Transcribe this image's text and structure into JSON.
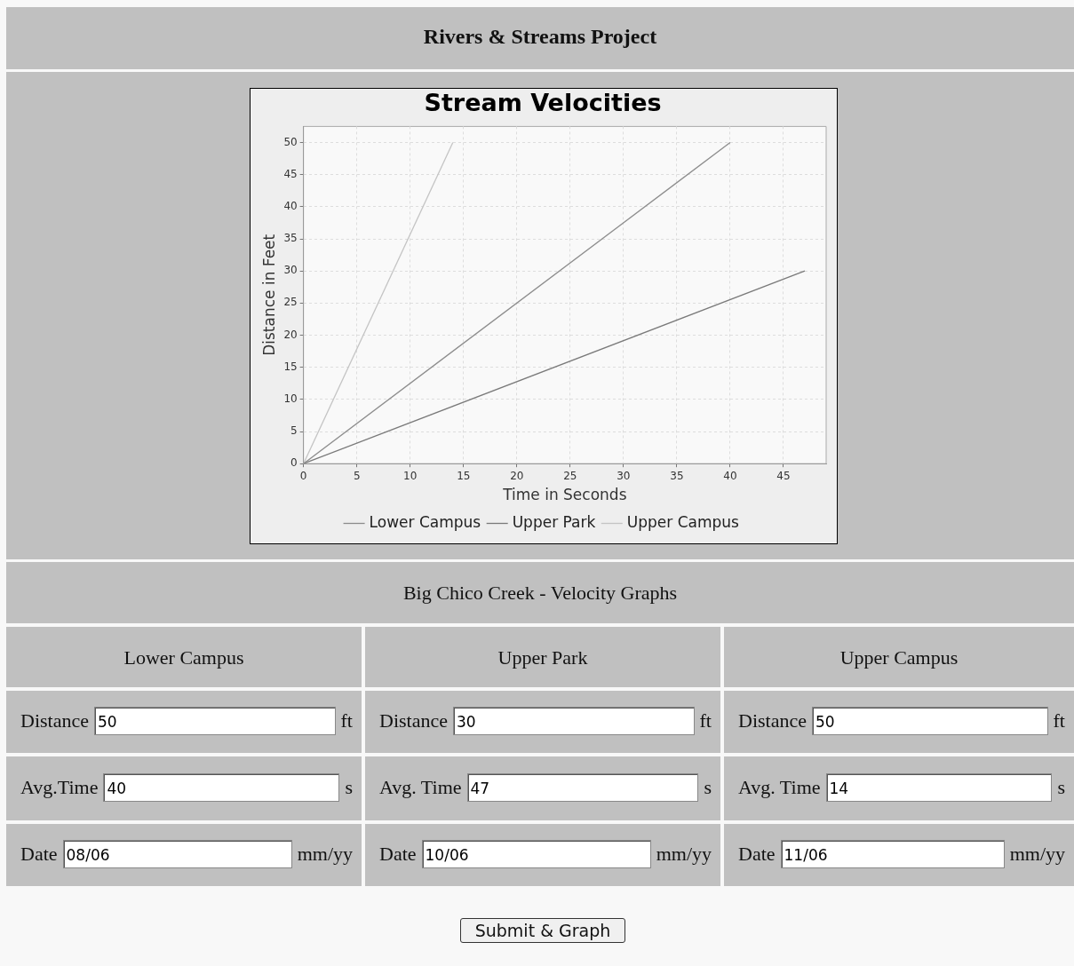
{
  "chart_data": {
    "type": "line",
    "title": "Stream Velocities",
    "xlabel": "Time in Seconds",
    "ylabel": "Distance in Feet",
    "xlim": [
      0,
      49
    ],
    "xticks": [
      0,
      5,
      10,
      15,
      20,
      25,
      30,
      35,
      40,
      45
    ],
    "ylim": [
      0,
      52.5
    ],
    "yticks": [
      0,
      5,
      10,
      15,
      20,
      25,
      30,
      35,
      40,
      45,
      50
    ],
    "grid": true,
    "legend": "bottom",
    "marker": "none",
    "line_style": "solid",
    "series": [
      {
        "name": "Lower Campus",
        "color": "#8c8c8c",
        "x": [
          0,
          40
        ],
        "values": [
          0,
          50
        ]
      },
      {
        "name": "Upper Park",
        "color": "#7a7a7a",
        "x": [
          0,
          47
        ],
        "values": [
          0,
          30
        ]
      },
      {
        "name": "Upper Campus",
        "color": "#c4c4c4",
        "x": [
          0,
          14
        ],
        "values": [
          0,
          50
        ]
      }
    ],
    "annotations": [
      "Rivers & Streams Project",
      "Big Chico Creek - Velocity Graphs",
      "Lower Campus",
      "Upper Park",
      "Upper Campus",
      "Distance",
      "50",
      "ft",
      "Avg.Time",
      "40",
      "s",
      "Date",
      "08/06",
      "mm/yy",
      "Distance",
      "30",
      "ft",
      "Avg. Time",
      "47",
      "s",
      "Date",
      "10/06",
      "mm/yy",
      "Distance",
      "50",
      "ft",
      "Avg. Time",
      "14",
      "s",
      "Date",
      "11/06",
      "mm/yy",
      "Submit & Graph"
    ]
  }
}
